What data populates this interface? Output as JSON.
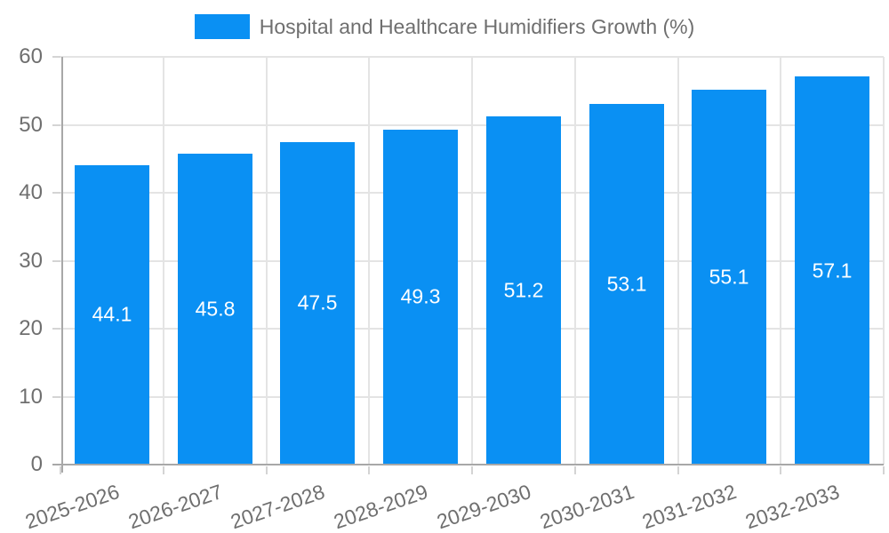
{
  "legend": {
    "label": "Hospital and Healthcare Humidifiers Growth (%)"
  },
  "colors": {
    "bar": "#0a90f3",
    "axis_line": "#a8a8a8",
    "grid_line": "#e4e4e4",
    "tick_mark": "#d4d4d4",
    "text_gray": "#6f6f6f",
    "value_label": "#ffffff",
    "background": "#ffffff"
  },
  "chart_data": {
    "type": "bar",
    "title": "Hospital and Healthcare Humidifiers Growth (%)",
    "categories": [
      "2025-2026",
      "2026-2027",
      "2027-2028",
      "2028-2029",
      "2029-2030",
      "2030-2031",
      "2031-2032",
      "2032-2033"
    ],
    "values": [
      44.1,
      45.8,
      47.5,
      49.3,
      51.2,
      53.1,
      55.1,
      57.1
    ],
    "value_labels": [
      "44.1",
      "45.8",
      "47.5",
      "49.3",
      "51.2",
      "53.1",
      "55.1",
      "57.1"
    ],
    "xlabel": "",
    "ylabel": "",
    "ylim": [
      0,
      60
    ],
    "ytick_step": 10,
    "ytick_labels": [
      "0",
      "10",
      "20",
      "30",
      "40",
      "50",
      "60"
    ],
    "grid": "on",
    "legend_position": "top",
    "value_label_position": "center-of-bar",
    "xlabel_rotation_deg": -19
  }
}
